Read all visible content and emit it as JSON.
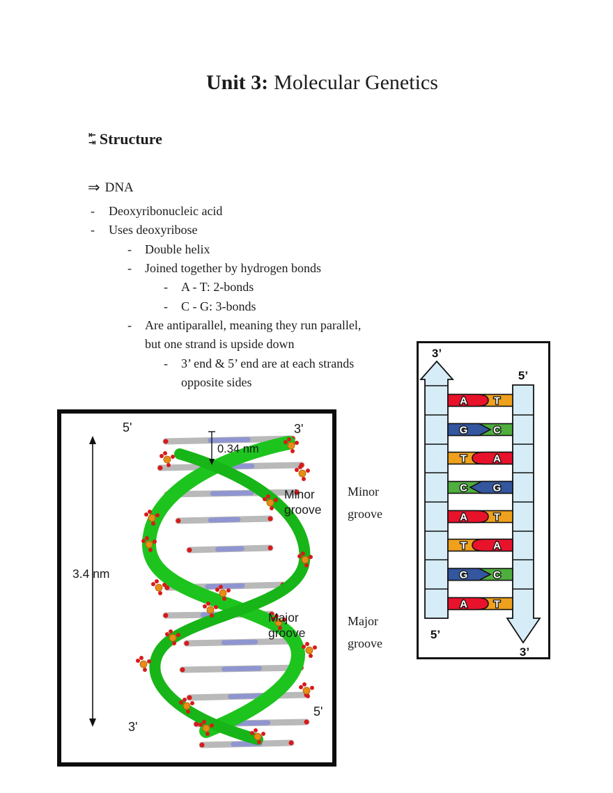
{
  "doc": {
    "title_bold": "Unit 3:",
    "title_rest": "Molecular Genetics",
    "section": {
      "icon_top": "⇤",
      "icon_bottom": "⇥",
      "label": "Structure"
    },
    "dna": {
      "arrow": "⇒",
      "label": "DNA"
    },
    "bullet_char": "-",
    "notes": [
      {
        "indent": 1,
        "bullet": true,
        "text": "Deoxyribonucleic acid"
      },
      {
        "indent": 1,
        "bullet": true,
        "text": "Uses deoxyribose"
      },
      {
        "indent": 2,
        "bullet": true,
        "text": "Double helix"
      },
      {
        "indent": 2,
        "bullet": true,
        "text": "Joined together by hydrogen bonds"
      },
      {
        "indent": 3,
        "bullet": true,
        "text": "A - T: 2-bonds"
      },
      {
        "indent": 3,
        "bullet": true,
        "text": "C - G: 3-bonds"
      },
      {
        "indent": 2,
        "bullet": true,
        "text": "Are antiparallel, meaning they run parallel,"
      },
      {
        "indent": 2,
        "bullet": false,
        "text": "but one strand is upside down"
      },
      {
        "indent": 3,
        "bullet": true,
        "text": "3’ end & 5’ end are at each strands"
      },
      {
        "indent": 3,
        "bullet": false,
        "text": "opposite sides"
      }
    ],
    "side_labels": {
      "minor_line1": "Minor",
      "minor_line2": "groove",
      "major_line1": "Major",
      "major_line2": "groove"
    }
  },
  "helix_figure": {
    "top_left": "5'",
    "top_right": "3'",
    "bottom_left": "3'",
    "bottom_right": "5'",
    "rise_label": "0.34 nm",
    "pitch_label": "3.4 nm",
    "minor_line1": "Minor",
    "minor_line2": "groove",
    "major_line1": "Major",
    "major_line2": "groove"
  },
  "ladder_figure": {
    "left_strand": {
      "top_label": "3’",
      "bottom_label": "5’"
    },
    "right_strand": {
      "top_label": "5’",
      "bottom_label": "3’"
    },
    "strand_color": "#d6ecf7",
    "outline_color": "#111111",
    "base_colors": {
      "A": "#e8132b",
      "T": "#efa11d",
      "G": "#33569f",
      "C": "#4fae3e"
    },
    "pairs": [
      {
        "left": "A",
        "right": "T",
        "point": "right",
        "tip": "round"
      },
      {
        "left": "G",
        "right": "C",
        "point": "right",
        "tip": "chevron"
      },
      {
        "left": "T",
        "right": "A",
        "point": "left",
        "tip": "round"
      },
      {
        "left": "C",
        "right": "G",
        "point": "left",
        "tip": "chevron"
      },
      {
        "left": "A",
        "right": "T",
        "point": "right",
        "tip": "round"
      },
      {
        "left": "T",
        "right": "A",
        "point": "left",
        "tip": "round"
      },
      {
        "left": "G",
        "right": "C",
        "point": "right",
        "tip": "chevron"
      },
      {
        "left": "A",
        "right": "T",
        "point": "right",
        "tip": "round"
      }
    ]
  }
}
